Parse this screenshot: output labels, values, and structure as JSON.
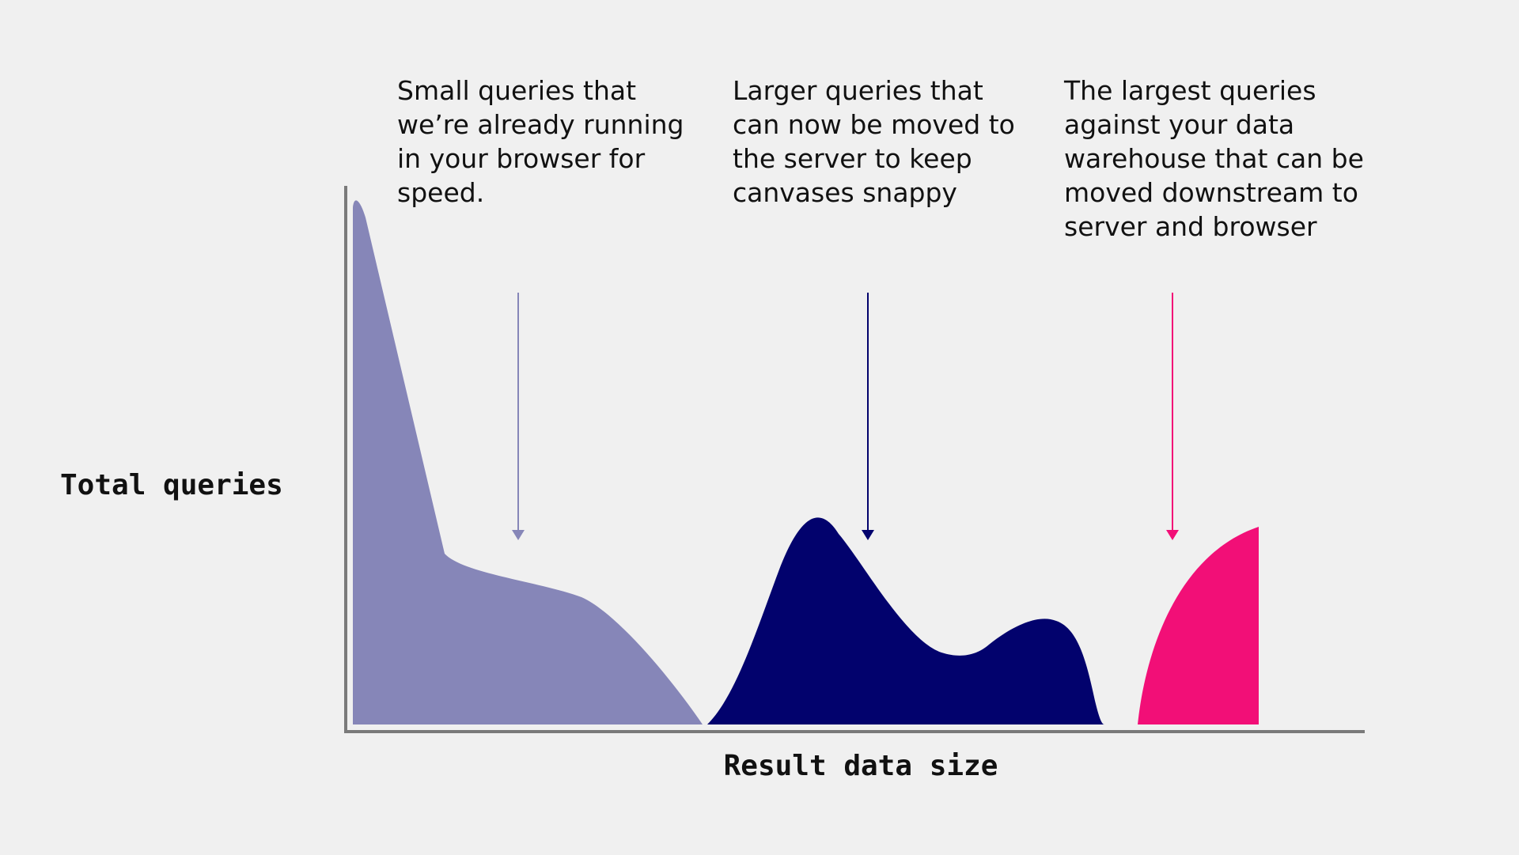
{
  "axes": {
    "y_label": "Total queries",
    "x_label": "Result data size"
  },
  "annotations": [
    {
      "id": "small",
      "lines": [
        "Small queries that",
        "we’re already running",
        "in your browser for",
        "speed."
      ],
      "color": "#8686b8"
    },
    {
      "id": "larger",
      "lines": [
        "Larger queries that",
        "can now be moved to",
        "the server to keep",
        "canvases snappy"
      ],
      "color": "#02026d"
    },
    {
      "id": "largest",
      "lines": [
        "The largest queries",
        "against your data",
        "warehouse that can be",
        "moved downstream to",
        "server and browser"
      ],
      "color": "#f20f77"
    }
  ],
  "colors": {
    "background": "#f0f0f0",
    "axis": "#7a7a7a",
    "small_queries": "#8686b8",
    "larger_queries": "#02026d",
    "largest_queries": "#f20f77",
    "text": "#111111"
  }
}
